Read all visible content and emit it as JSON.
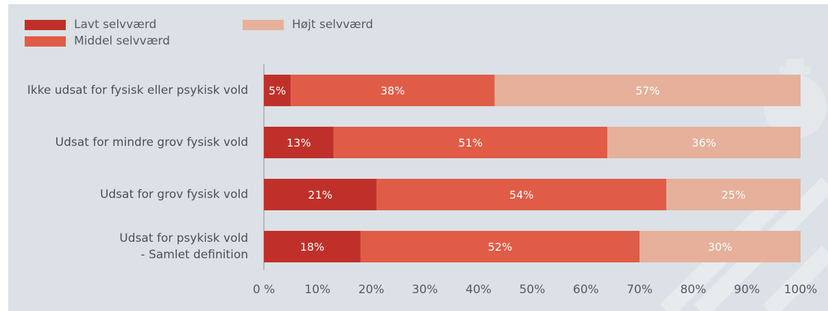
{
  "chart_data": {
    "type": "bar",
    "orientation": "horizontal",
    "stacked": true,
    "categories": [
      [
        "Ikke udsat for fysisk eller psykisk vold"
      ],
      [
        "Udsat for mindre grov fysisk vold"
      ],
      [
        "Udsat for grov fysisk vold"
      ],
      [
        "Udsat for psykisk vold",
        "- Samlet definition"
      ]
    ],
    "series": [
      {
        "name": "Lavt selvværd",
        "color": "#c0302a",
        "values": [
          5,
          13,
          21,
          18
        ],
        "labels": [
          "5%",
          "13%",
          "21%",
          "18%"
        ]
      },
      {
        "name": "Middel selvværd",
        "color": "#e05c46",
        "values": [
          38,
          51,
          54,
          52
        ],
        "labels": [
          "38%",
          "51%",
          "54%",
          "52%"
        ]
      },
      {
        "name": "Højt selvværd",
        "color": "#e6b09b",
        "values": [
          57,
          36,
          25,
          30
        ],
        "labels": [
          "57%",
          "36%",
          "25%",
          "30%"
        ]
      }
    ],
    "xlim": [
      0,
      100
    ],
    "xticks": [
      0,
      10,
      20,
      30,
      40,
      50,
      60,
      70,
      80,
      90,
      100
    ],
    "xtick_labels": [
      "0 %",
      "10%",
      "20%",
      "30%",
      "40%",
      "50%",
      "60%",
      "70%",
      "80%",
      "90%",
      "100%"
    ],
    "legend_position": "top-left",
    "grid": false
  }
}
